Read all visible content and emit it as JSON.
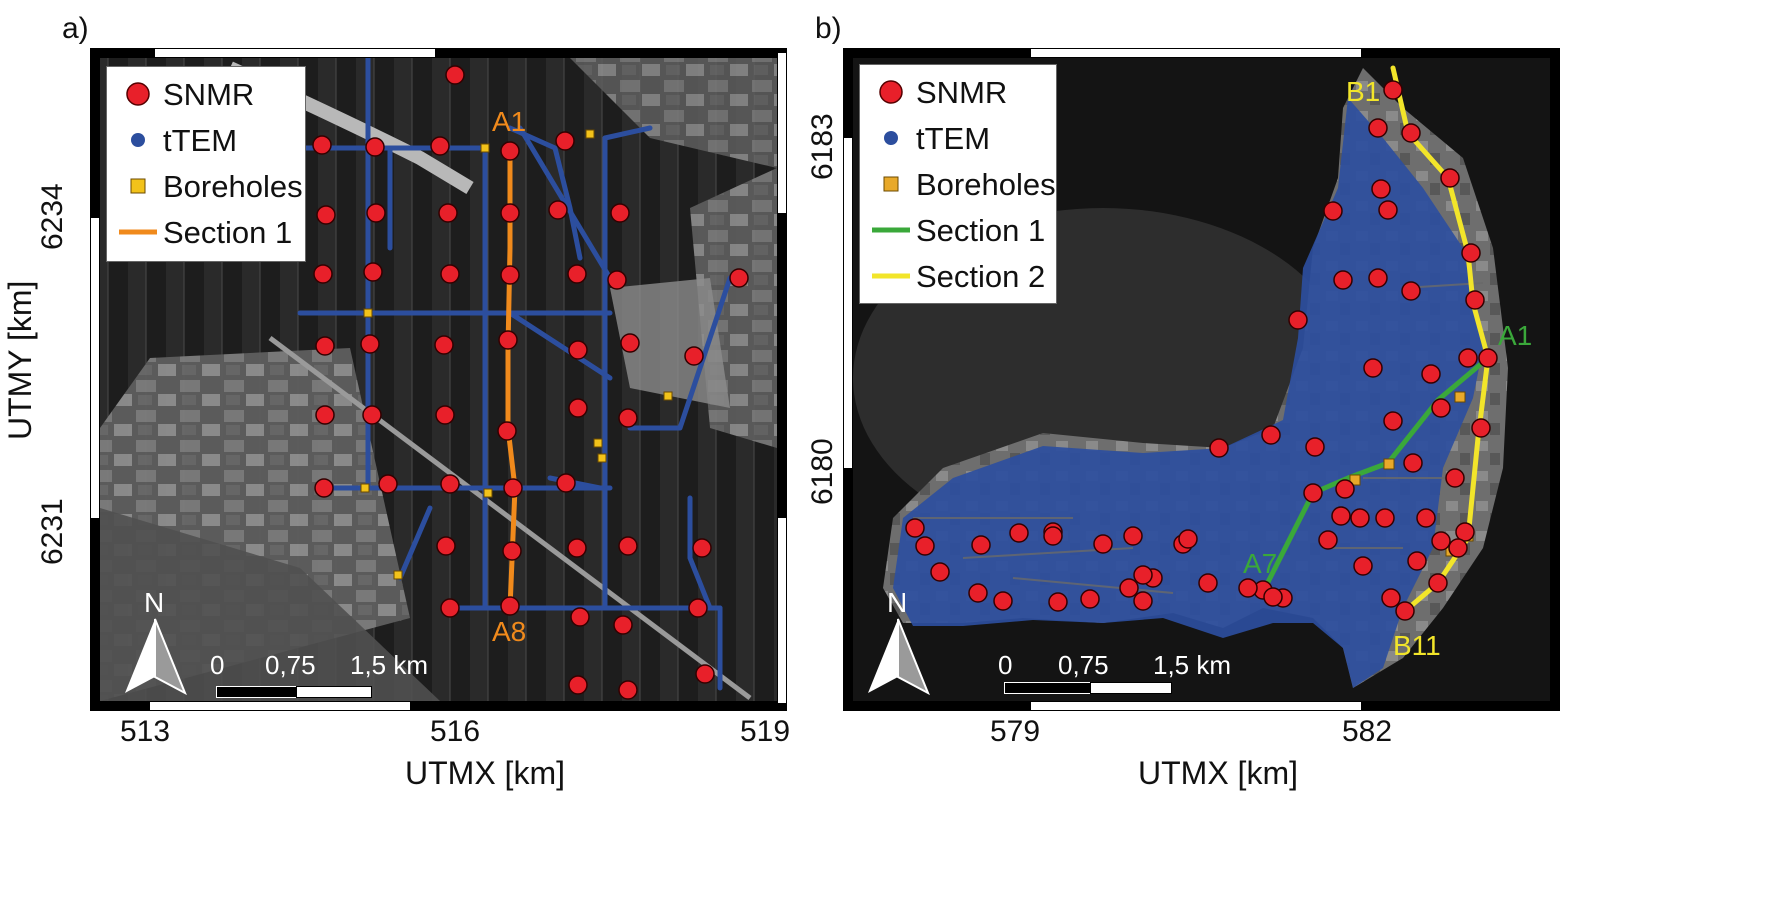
{
  "panels": [
    {
      "letter": "a)",
      "x_axis_title": "UTMX [km]",
      "y_axis_title": "UTMY [km]",
      "x_ticks": [
        "513",
        "516",
        "519"
      ],
      "y_ticks": [
        "6234",
        "6231"
      ],
      "legend": [
        {
          "label": "SNMR",
          "symbol": "circle-red-icon"
        },
        {
          "label": "tTEM",
          "symbol": "dot-blue-icon"
        },
        {
          "label": "Boreholes",
          "symbol": "square-yellow-icon"
        },
        {
          "label": "Section 1",
          "symbol": "line-orange-icon"
        }
      ],
      "section_labels": [
        "A1",
        "A8"
      ],
      "scale_labels": [
        "0",
        "0,75",
        "1,5 km"
      ],
      "north_label": "N"
    },
    {
      "letter": "b)",
      "x_axis_title": "UTMX [km]",
      "y_axis_title": "",
      "x_ticks": [
        "579",
        "582"
      ],
      "y_ticks": [
        "6183",
        "6180"
      ],
      "legend": [
        {
          "label": "SNMR",
          "symbol": "circle-red-icon"
        },
        {
          "label": "tTEM",
          "symbol": "dot-blue-icon"
        },
        {
          "label": "Boreholes",
          "symbol": "square-yellow-icon"
        },
        {
          "label": "Section 1",
          "symbol": "line-green-icon"
        },
        {
          "label": "Section 2",
          "symbol": "line-yellow-icon"
        }
      ],
      "section_labels": [
        "A1",
        "A7",
        "B1",
        "B11"
      ],
      "scale_labels": [
        "0",
        "0,75",
        "1,5 km"
      ],
      "north_label": "N"
    }
  ],
  "colors": {
    "snmr": "#e8202a",
    "ttem": "#2c4e9e",
    "borehole": "#e8a92a",
    "section_a": "#f08a1c",
    "section_b1": "#3aa83a",
    "section_b2": "#f2e52a"
  }
}
